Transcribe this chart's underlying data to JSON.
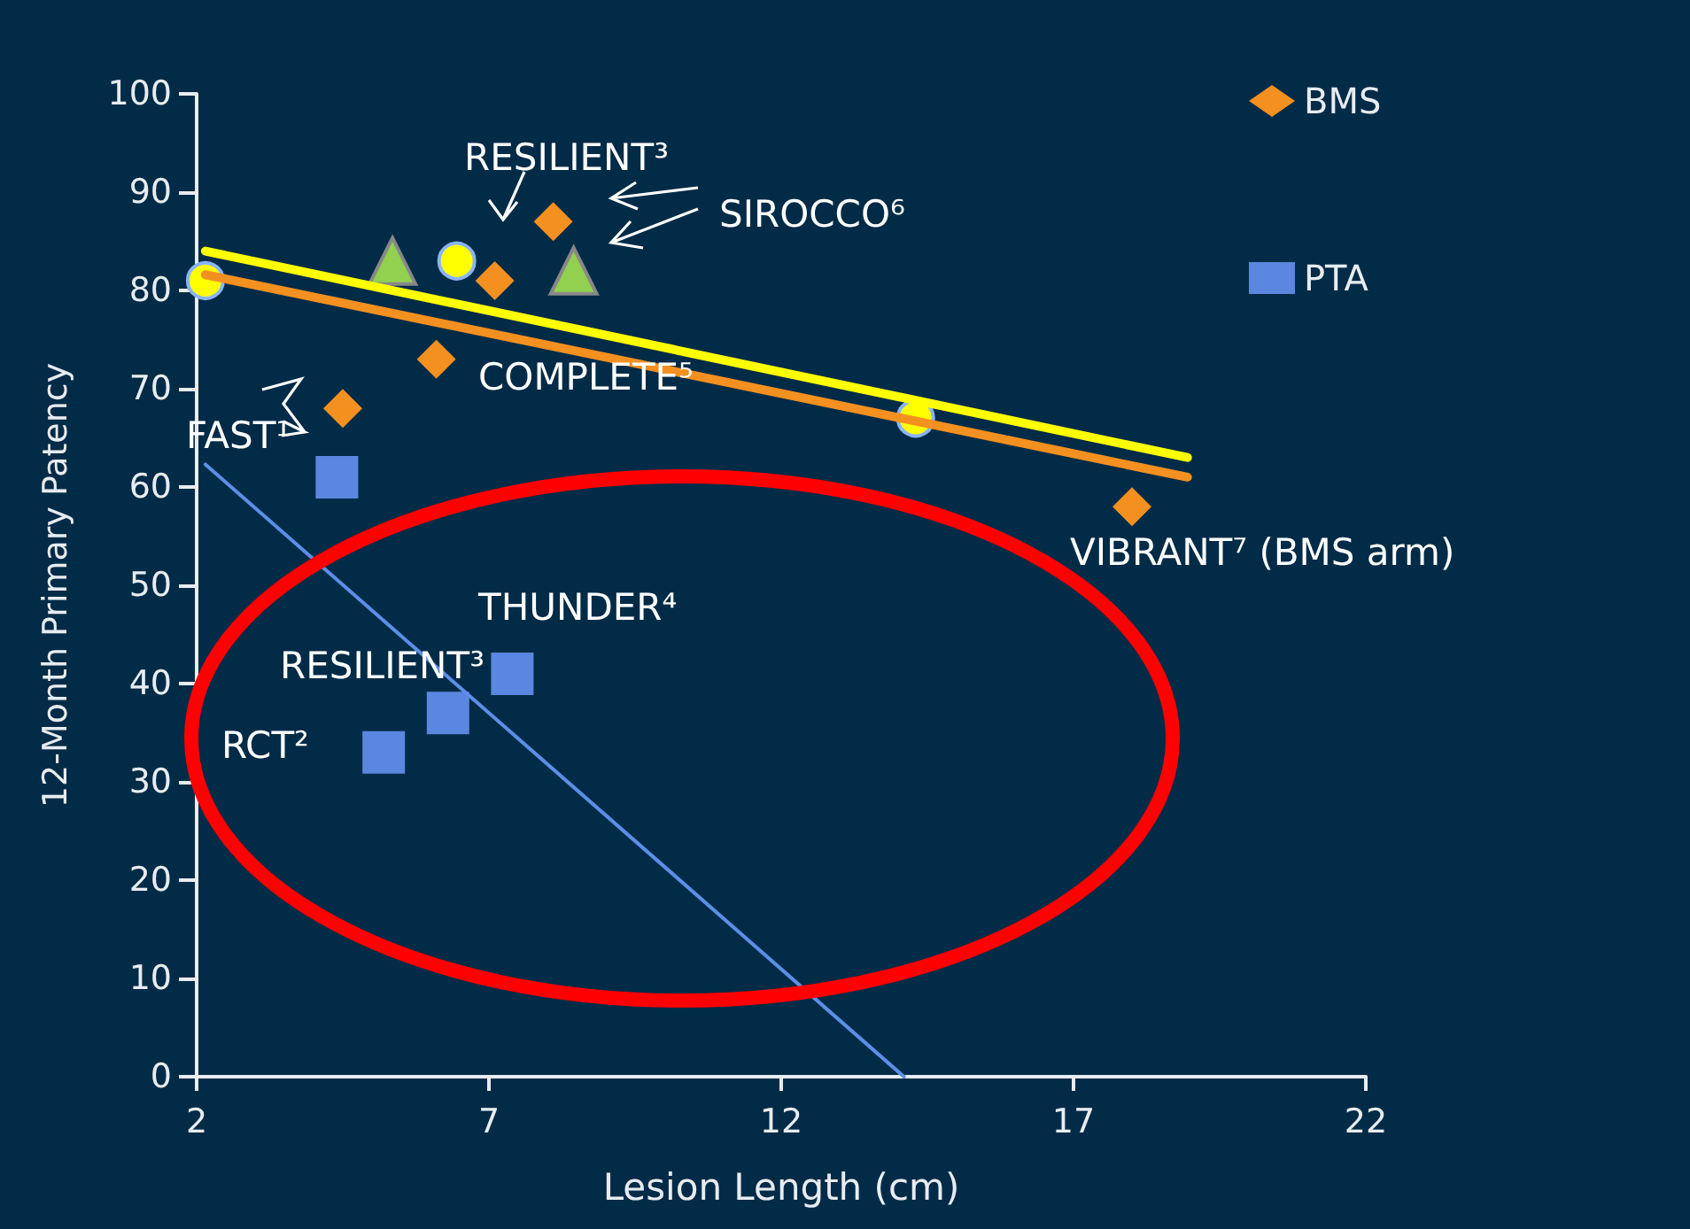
{
  "chart_data": {
    "type": "scatter",
    "xlabel": "Lesion Length (cm)",
    "ylabel": "12-Month Primary Patency",
    "xlim": [
      2,
      22
    ],
    "xticks": [
      2,
      7,
      12,
      17,
      22
    ],
    "ylim": [
      0,
      100
    ],
    "yticks": [
      0,
      10,
      20,
      30,
      40,
      50,
      60,
      70,
      80,
      90,
      100
    ],
    "grid": false,
    "legend": "top right",
    "series": [
      {
        "name": "BMS",
        "marker": "diamond",
        "color": "#f39020",
        "x": [
          4.5,
          6.1,
          7.1,
          8.1,
          18.0
        ],
        "values": [
          68,
          73,
          81,
          87,
          58
        ]
      },
      {
        "name": "PTA",
        "marker": "square",
        "color": "#5b87e0",
        "x": [
          4.4,
          5.2,
          6.3,
          7.4
        ],
        "values": [
          61,
          33,
          37,
          41
        ]
      },
      {
        "marker": "circle",
        "color": "#ffff00",
        "x": [
          2.15,
          6.45,
          14.3
        ],
        "values": [
          81,
          83,
          67
        ]
      },
      {
        "marker": "triangle",
        "color": "#92d050",
        "x": [
          5.35,
          8.45
        ],
        "values": [
          83,
          82
        ]
      },
      {
        "type": "line",
        "marker": "none",
        "color": "#ffff00",
        "x": [
          2.15,
          18.95
        ],
        "values": [
          84,
          63
        ]
      },
      {
        "type": "line",
        "marker": "none",
        "color": "#f39020",
        "x": [
          2.15,
          18.95
        ],
        "values": [
          81.6,
          61
        ]
      },
      {
        "type": "line",
        "marker": "none",
        "color": "#5b8fe8",
        "x": [
          2.15,
          14.1
        ],
        "values": [
          62.3,
          0
        ]
      }
    ],
    "annotations": [
      "RESILIENT³",
      "SIROCCO⁶",
      "COMPLETE⁵",
      "FAST¹",
      "VIBRANT⁷ (BMS arm)",
      "THUNDER⁴",
      "RESILIENT³",
      "RCT²"
    ]
  }
}
